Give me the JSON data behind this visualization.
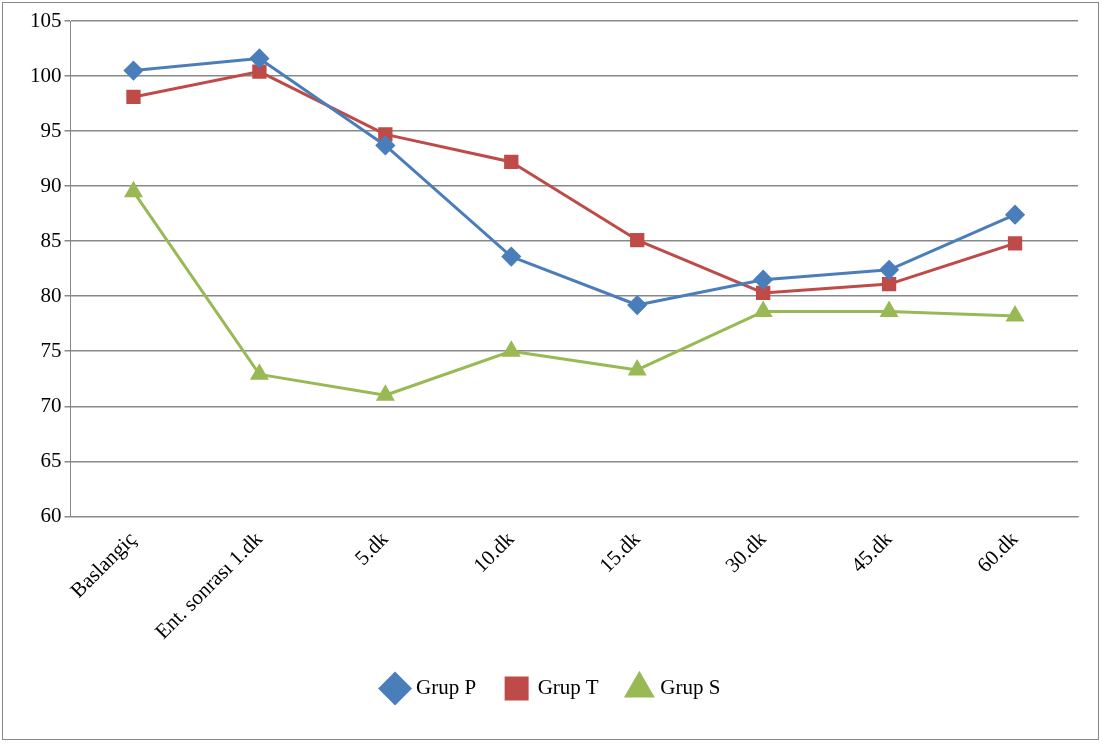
{
  "chart_data": {
    "type": "line",
    "categories": [
      "Baslangiç",
      "Ent. sonrası 1.dk",
      "5.dk",
      "10.dk",
      "15.dk",
      "30.dk",
      "45.dk",
      "60.dk"
    ],
    "series": [
      {
        "name": "Grup P",
        "color": "#4a7ebb",
        "marker": "diamond",
        "values": [
          100.5,
          101.6,
          93.7,
          83.6,
          79.2,
          81.5,
          82.4,
          87.4
        ]
      },
      {
        "name": "Grup T",
        "color": "#be4b48",
        "marker": "square",
        "values": [
          98.1,
          100.4,
          94.7,
          92.2,
          85.1,
          80.3,
          81.1,
          84.8
        ]
      },
      {
        "name": "Grup S",
        "color": "#98b954",
        "marker": "triangle",
        "values": [
          89.5,
          72.9,
          71.0,
          75.0,
          73.3,
          78.6,
          78.6,
          78.2
        ]
      }
    ],
    "ylim": [
      60,
      105
    ],
    "yticks": [
      60,
      65,
      70,
      75,
      80,
      85,
      90,
      95,
      100,
      105
    ],
    "grid": "y",
    "legend": "bottom",
    "line_style": "solid"
  }
}
